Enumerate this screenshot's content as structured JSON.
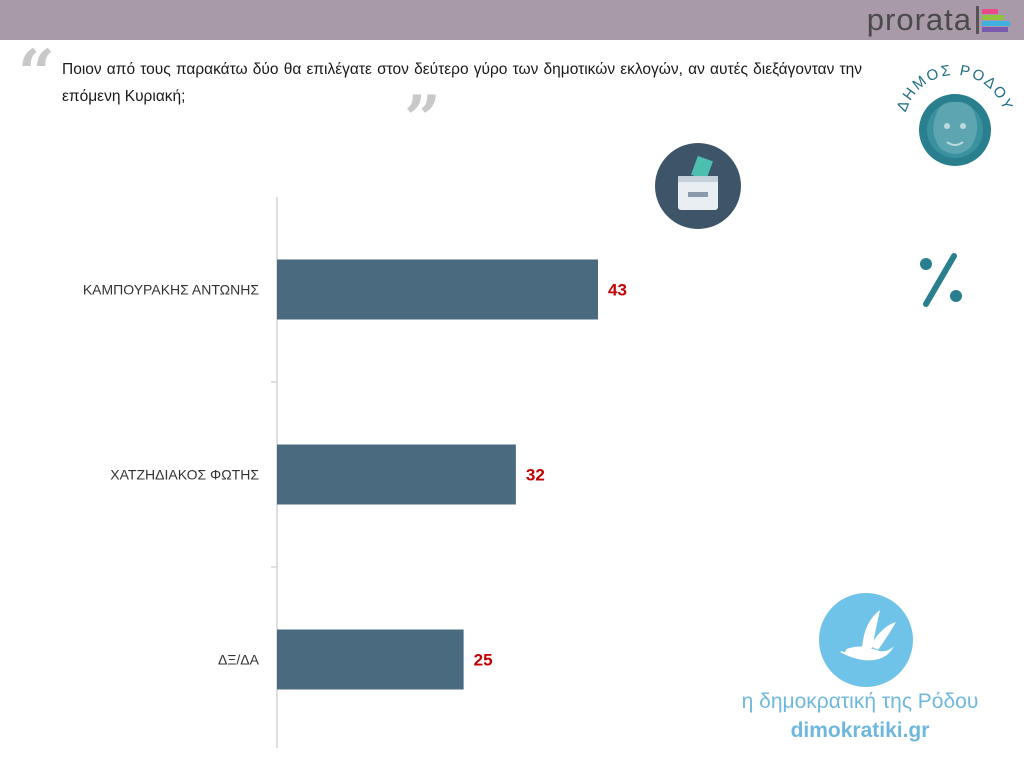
{
  "header": {
    "brand": "prorata"
  },
  "question": "Ποιον από τους παρακάτω δύο θα επιλέγατε στον δεύτερο γύρο των δημοτικών εκλογών, αν αυτές διεξάγονταν την επόμενη Κυριακή;",
  "seal": {
    "text": "ΔΗΜΟΣ ΡΟΔΟΥ"
  },
  "icons": {
    "ballot": "ballot-box-icon",
    "percent": "percent-icon",
    "dove": "dove-icon",
    "percent_color": "#2a7f8f"
  },
  "chart_data": {
    "type": "bar",
    "orientation": "horizontal",
    "categories": [
      "ΚΑΜΠΟΥΡΑΚΗΣ ΑΝΤΩΝΗΣ",
      "ΧΑΤΖΗΔΙΑΚΟΣ ΦΩΤΗΣ",
      "ΔΞ/ΔΑ"
    ],
    "values": [
      43,
      32,
      25
    ],
    "title": "",
    "xlabel": "",
    "ylabel": "",
    "bar_color": "#4a6a80",
    "value_label_color": "#c00000"
  },
  "footer": {
    "line1": "η δημοκρατική της Ρόδου",
    "line2": "dimokratiki.gr"
  }
}
